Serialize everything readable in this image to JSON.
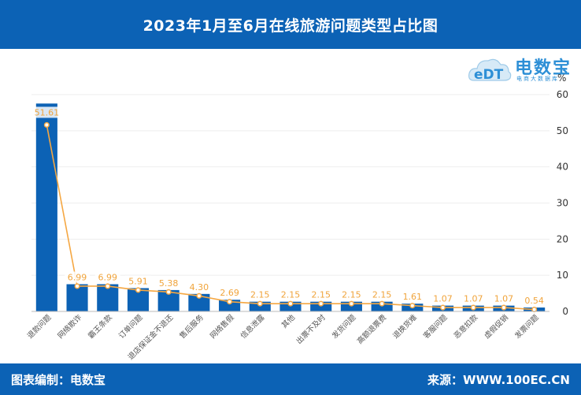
{
  "header": {
    "title": "2023年1月至6月在线旅游问题类型占比图"
  },
  "logo": {
    "brand": "电数宝",
    "sub": "电商大数据库",
    "mark": "eDT"
  },
  "footer": {
    "left": "图表编制：电数宝",
    "right": "来源：WWW.100EC.CN"
  },
  "colors": {
    "bar": "#0c62b5",
    "line": "#f5a742",
    "header": "#0c62b5"
  },
  "chart_data": {
    "type": "bar",
    "title": "2023年1月至6月在线旅游问题类型占比图",
    "unit": "%",
    "categories": [
      "退款问题",
      "网络欺诈",
      "霸王条款",
      "订单问题",
      "退店保证金不退还",
      "售后服务",
      "网络售假",
      "信息泄露",
      "其他",
      "出票不及时",
      "发货问题",
      "高额退票费",
      "退换货难",
      "客服问题",
      "恶意扣款",
      "虚假促销",
      "发票问题"
    ],
    "values": [
      57.53,
      7.53,
      7.53,
      6.45,
      5.91,
      4.84,
      3.23,
      2.69,
      2.69,
      2.69,
      2.69,
      2.69,
      2.15,
      1.61,
      1.61,
      1.61,
      1.08
    ],
    "series": [
      {
        "name": "bars",
        "values": [
          57.53,
          7.53,
          7.53,
          6.45,
          5.91,
          4.84,
          3.23,
          2.69,
          2.69,
          2.69,
          2.69,
          2.69,
          2.15,
          1.61,
          1.61,
          1.61,
          1.08
        ]
      },
      {
        "name": "line",
        "values": [
          51.61,
          6.99,
          6.99,
          5.91,
          5.38,
          4.3,
          2.69,
          2.15,
          2.15,
          2.15,
          2.15,
          2.15,
          1.61,
          1.07,
          1.07,
          1.07,
          0.54
        ]
      }
    ],
    "line_labels": [
      "51.61",
      "6.99",
      "6.99",
      "5.91",
      "5.38",
      "4.30",
      "2.69",
      "2.15",
      "2.15",
      "2.15",
      "2.15",
      "2.15",
      "1.61",
      "1.07",
      "1.07",
      "1.07",
      "0.54"
    ],
    "y_ticks": [
      "0",
      "10",
      "20",
      "30",
      "40",
      "50",
      "60"
    ],
    "ylim": [
      0,
      60
    ],
    "y_axis_side": "right"
  }
}
